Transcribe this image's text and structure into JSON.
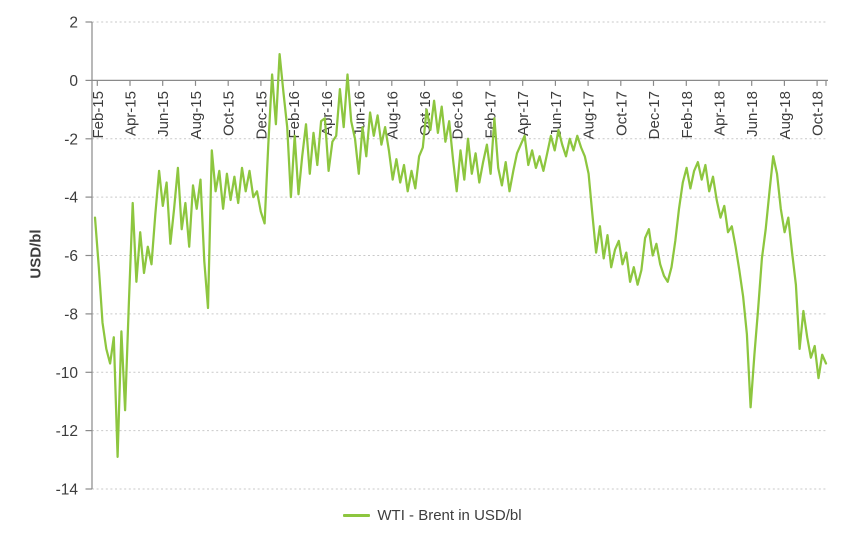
{
  "chart_data": {
    "type": "line",
    "title": "",
    "y_axis": {
      "label": "USD/bl",
      "min": -14,
      "max": 2,
      "tick_step": 2,
      "ticks": [
        2,
        0,
        -2,
        -4,
        -6,
        -8,
        -10,
        -12,
        -14
      ]
    },
    "x_axis": {
      "tick_labels": [
        "Feb-15",
        "Apr-15",
        "Jun-15",
        "Aug-15",
        "Oct-15",
        "Dec-15",
        "Feb-16",
        "Apr-16",
        "Jun-16",
        "Aug-16",
        "Oct-16",
        "Dec-16",
        "Feb-17",
        "Apr-17",
        "Jun-17",
        "Aug-17",
        "Oct-17",
        "Dec-17",
        "Feb-18",
        "Apr-18",
        "Jun-18",
        "Aug-18",
        "Oct-18"
      ]
    },
    "grid": {
      "horizontal": true,
      "vertical": false,
      "style": "dotted"
    },
    "legend": {
      "position": "bottom",
      "label": "WTI - Brent in USD/bl"
    },
    "series": [
      {
        "name": "WTI - Brent in USD/bl",
        "color": "#8DC63F",
        "values": [
          -4.7,
          -6.4,
          -8.3,
          -9.2,
          -9.7,
          -8.8,
          -12.9,
          -8.6,
          -11.3,
          -7.6,
          -4.2,
          -6.9,
          -5.2,
          -6.6,
          -5.7,
          -6.3,
          -4.6,
          -3.1,
          -4.3,
          -3.5,
          -5.6,
          -4.4,
          -3.0,
          -5.1,
          -4.2,
          -5.7,
          -3.6,
          -4.4,
          -3.4,
          -6.2,
          -7.8,
          -2.4,
          -3.8,
          -3.1,
          -4.4,
          -3.2,
          -4.1,
          -3.3,
          -4.2,
          -3.0,
          -3.8,
          -3.1,
          -4.0,
          -3.8,
          -4.5,
          -4.9,
          -2.2,
          0.2,
          -1.5,
          0.9,
          -0.4,
          -1.6,
          -4.0,
          -1.9,
          -3.9,
          -2.6,
          -1.5,
          -3.2,
          -1.8,
          -2.9,
          -1.4,
          -1.3,
          -3.1,
          -2.1,
          -1.9,
          -0.3,
          -1.6,
          0.2,
          -1.4,
          -2.0,
          -3.2,
          -1.6,
          -2.6,
          -1.1,
          -1.9,
          -1.2,
          -2.2,
          -1.6,
          -2.4,
          -3.4,
          -2.7,
          -3.5,
          -2.9,
          -3.8,
          -3.1,
          -3.7,
          -2.6,
          -2.3,
          -1.0,
          -1.7,
          -0.7,
          -1.8,
          -0.9,
          -2.1,
          -1.4,
          -2.7,
          -3.8,
          -2.4,
          -3.4,
          -2.0,
          -3.2,
          -2.5,
          -3.5,
          -2.8,
          -2.2,
          -3.2,
          -1.3,
          -3.0,
          -3.6,
          -2.8,
          -3.8,
          -3.1,
          -2.5,
          -2.2,
          -1.9,
          -2.9,
          -2.4,
          -3.0,
          -2.6,
          -3.1,
          -2.5,
          -1.9,
          -2.4,
          -1.7,
          -2.2,
          -2.6,
          -2.0,
          -2.4,
          -1.9,
          -2.3,
          -2.6,
          -3.2,
          -4.6,
          -5.9,
          -5.0,
          -6.1,
          -5.3,
          -6.4,
          -5.8,
          -5.5,
          -6.3,
          -5.9,
          -6.9,
          -6.4,
          -7.0,
          -6.5,
          -5.4,
          -5.1,
          -6.0,
          -5.6,
          -6.3,
          -6.7,
          -6.9,
          -6.4,
          -5.5,
          -4.4,
          -3.5,
          -3.0,
          -3.7,
          -3.1,
          -2.8,
          -3.4,
          -2.9,
          -3.8,
          -3.3,
          -4.1,
          -4.7,
          -4.3,
          -5.2,
          -5.0,
          -5.7,
          -6.5,
          -7.4,
          -8.7,
          -11.2,
          -9.4,
          -7.8,
          -6.1,
          -5.1,
          -3.8,
          -2.6,
          -3.2,
          -4.4,
          -5.2,
          -4.7,
          -5.9,
          -7.0,
          -9.2,
          -7.9,
          -8.8,
          -9.5,
          -9.1,
          -10.2,
          -9.4,
          -9.7
        ]
      }
    ]
  },
  "colors": {
    "axis": "#8a8a8a",
    "gridline": "#c9c9c9",
    "tick_label": "#3d3d3d"
  }
}
